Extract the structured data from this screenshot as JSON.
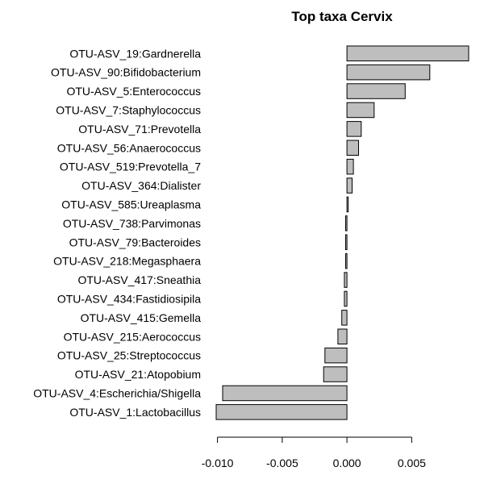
{
  "chart_data": {
    "type": "bar",
    "orientation": "horizontal",
    "title": "Top taxa Cervix",
    "xlabel": "",
    "ylabel": "",
    "xlim": [
      -0.0101,
      0.0094
    ],
    "xticks": [
      -0.01,
      -0.005,
      0.0,
      0.005
    ],
    "xtick_labels": [
      "-0.010",
      "-0.005",
      "0.000",
      "0.005"
    ],
    "grid": false,
    "legend": "none",
    "bar_color": "#bebebe",
    "bar_edge_color": "#000000",
    "categories": [
      "OTU-ASV_19:Gardnerella",
      "OTU-ASV_90:Bifidobacterium",
      "OTU-ASV_5:Enterococcus",
      "OTU-ASV_7:Staphylococcus",
      "OTU-ASV_71:Prevotella",
      "OTU-ASV_56:Anaerococcus",
      "OTU-ASV_519:Prevotella_7",
      "OTU-ASV_364:Dialister",
      "OTU-ASV_585:Ureaplasma",
      "OTU-ASV_738:Parvimonas",
      "OTU-ASV_79:Bacteroides",
      "OTU-ASV_218:Megasphaera",
      "OTU-ASV_417:Sneathia",
      "OTU-ASV_434:Fastidiosipila",
      "OTU-ASV_415:Gemella",
      "OTU-ASV_215:Aerococcus",
      "OTU-ASV_25:Streptococcus",
      "OTU-ASV_21:Atopobium",
      "OTU-ASV_4:Escherichia/Shigella",
      "OTU-ASV_1:Lactobacillus"
    ],
    "values": [
      0.0094,
      0.0064,
      0.0045,
      0.0021,
      0.0011,
      0.0009,
      0.0005,
      0.0004,
      0.0001,
      -0.0001,
      -0.0001,
      -0.0001,
      -0.0002,
      -0.0002,
      -0.0004,
      -0.0007,
      -0.0017,
      -0.0018,
      -0.0096,
      -0.0101
    ]
  }
}
